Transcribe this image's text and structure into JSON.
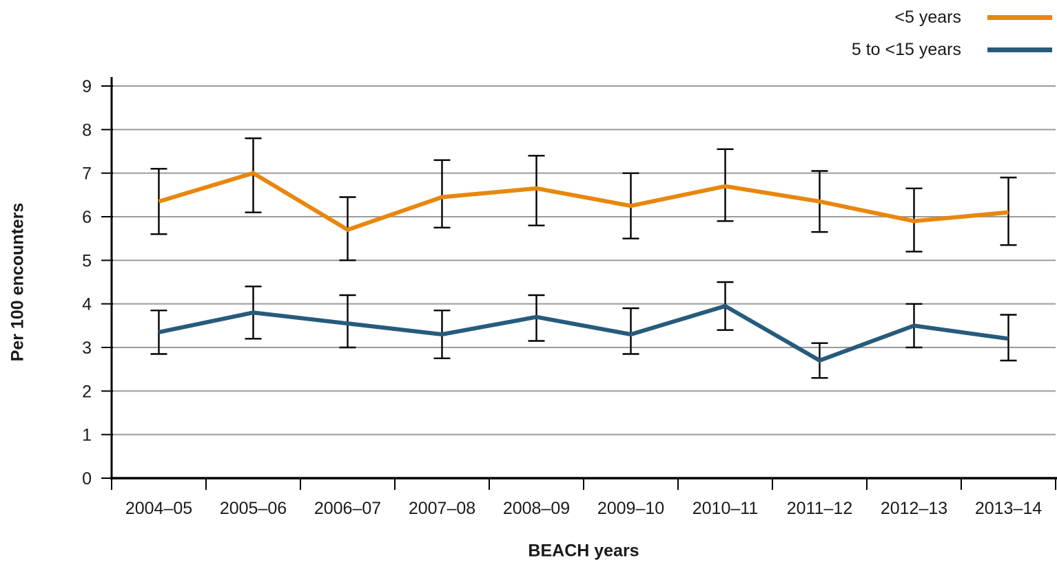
{
  "legend": {
    "items": [
      {
        "label": "<5 years",
        "color": "#E8870E"
      },
      {
        "label": "5 to <15 years",
        "color": "#275B7C"
      }
    ]
  },
  "chart_data": {
    "type": "line",
    "xlabel": "BEACH years",
    "ylabel": "Per 100 encounters",
    "categories": [
      "2004–05",
      "2005–06",
      "2006–07",
      "2007–08",
      "2008–09",
      "2009–10",
      "2010–11",
      "2011–12",
      "2012–13",
      "2013–14"
    ],
    "series": [
      {
        "name": "<5 years",
        "color": "#E8870E",
        "values": [
          6.35,
          7.0,
          5.7,
          6.45,
          6.65,
          6.25,
          6.7,
          6.35,
          5.9,
          6.1
        ],
        "ci_low": [
          5.6,
          6.1,
          5.0,
          5.75,
          5.8,
          5.5,
          5.9,
          5.65,
          5.2,
          5.35
        ],
        "ci_high": [
          7.1,
          7.8,
          6.45,
          7.3,
          7.4,
          7.0,
          7.55,
          7.05,
          6.65,
          6.9
        ]
      },
      {
        "name": "5 to <15 years",
        "color": "#275B7C",
        "values": [
          3.35,
          3.8,
          3.55,
          3.3,
          3.7,
          3.3,
          3.95,
          2.7,
          3.5,
          3.2
        ],
        "ci_low": [
          2.85,
          3.2,
          3.0,
          2.75,
          3.15,
          2.85,
          3.4,
          2.3,
          3.0,
          2.7
        ],
        "ci_high": [
          3.85,
          4.4,
          4.2,
          3.85,
          4.2,
          3.9,
          4.5,
          3.1,
          4.0,
          3.75
        ]
      }
    ],
    "ylim": [
      0,
      9
    ],
    "ytick_labels": [
      "0",
      "1",
      "2",
      "3",
      "4",
      "5",
      "6",
      "7",
      "8",
      "9"
    ],
    "grid": "horizontal",
    "error_bars": true,
    "legend_position": "top-right",
    "style": {
      "grid_color": "#9B9B9B",
      "axis_color": "#000000",
      "text_color": "#1A1A1A",
      "error_bar_color": "#000000"
    }
  }
}
